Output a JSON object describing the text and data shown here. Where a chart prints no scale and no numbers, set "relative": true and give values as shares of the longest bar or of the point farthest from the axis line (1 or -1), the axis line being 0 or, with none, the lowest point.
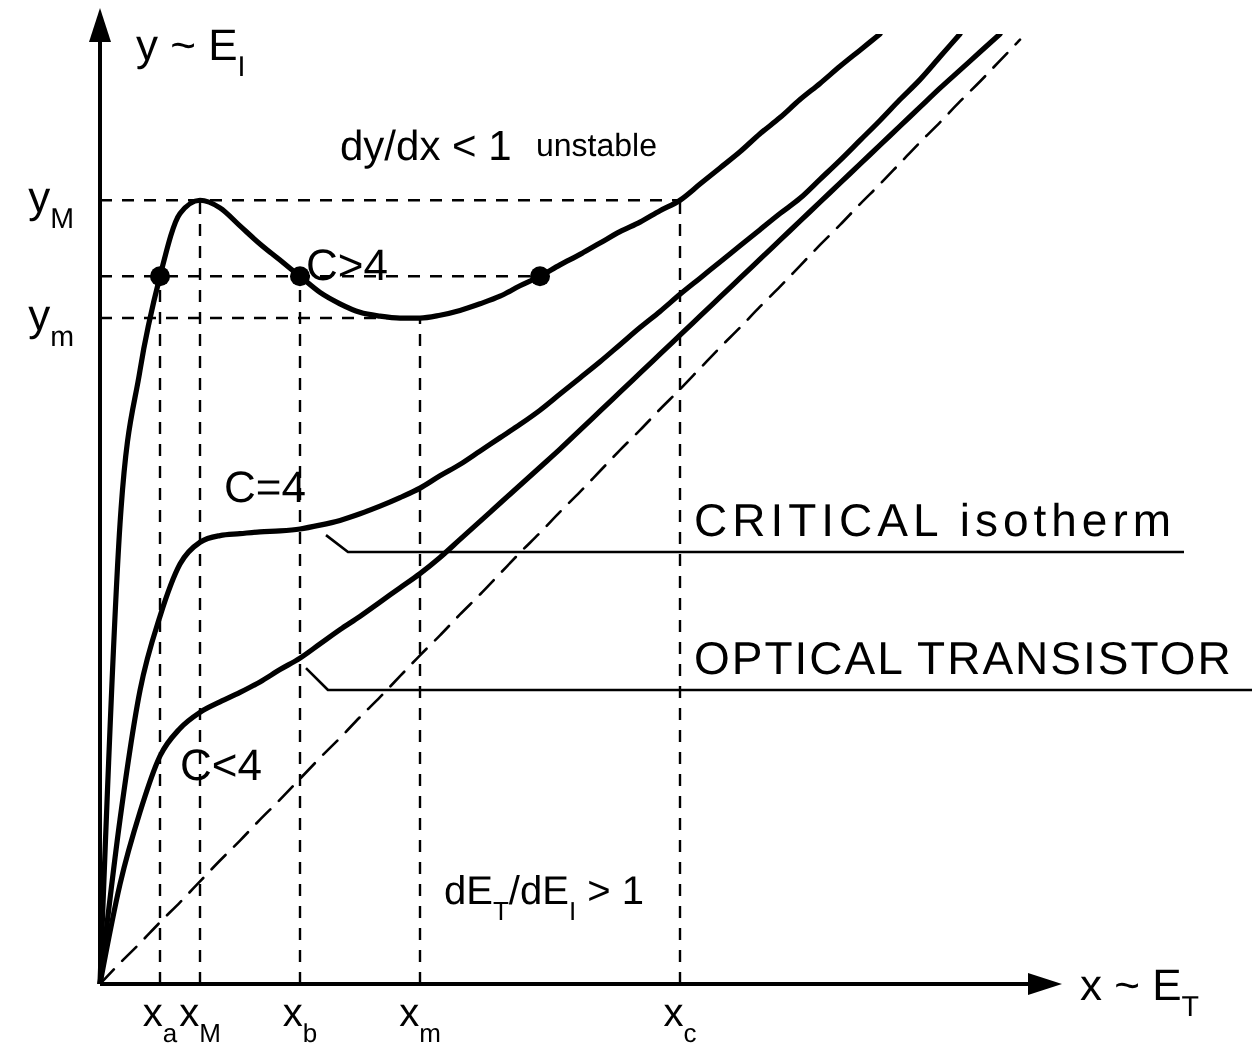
{
  "chart_data": {
    "type": "line",
    "relative": true,
    "xlabel": "x ~ E$_{T}$",
    "ylabel": "y ~ E$_{I}$",
    "categories": [
      null,
      null,
      null,
      "x$_{a}$",
      null,
      "x$_{M}$",
      null,
      null,
      null,
      null,
      "x$_{b}$",
      null,
      null,
      null,
      null,
      null,
      "x$_{m}$",
      null,
      null,
      null,
      null,
      null,
      null,
      null,
      null,
      null,
      null,
      null,
      null,
      "x$_{c}$",
      null,
      null,
      null,
      null,
      null,
      null,
      null,
      null,
      null,
      null,
      null,
      null,
      null,
      null,
      null,
      null,
      null,
      null
    ],
    "line_style": "solid",
    "series": [
      {
        "name": "C>4",
        "color": "#000000",
        "values": [
          0,
          0.484,
          0.646,
          0.745,
          0.811,
          0.825,
          0.817,
          0.798,
          0.779,
          0.762,
          0.745,
          0.728,
          0.716,
          0.707,
          0.703,
          0.701,
          0.701,
          0.704,
          0.709,
          0.716,
          0.724,
          0.735,
          0.745,
          0.757,
          0.768,
          0.78,
          0.792,
          0.802,
          0.814,
          0.825,
          0.842,
          0.859,
          0.876,
          0.895,
          0.912,
          0.931,
          0.948,
          0.966,
          0.983,
          1.0,
          null,
          null,
          null,
          null,
          null,
          null,
          null,
          null
        ]
      },
      {
        "name": "C=4",
        "color": "#000000",
        "values": [
          0,
          0.173,
          0.309,
          0.387,
          0.442,
          0.465,
          0.472,
          0.474,
          0.476,
          0.477,
          0.479,
          0.483,
          0.488,
          0.495,
          0.503,
          0.512,
          0.522,
          0.535,
          0.547,
          0.561,
          0.575,
          0.589,
          0.604,
          0.621,
          0.638,
          0.655,
          0.673,
          0.691,
          0.708,
          0.726,
          0.743,
          0.76,
          0.777,
          0.794,
          0.811,
          0.827,
          0.847,
          0.867,
          0.888,
          0.909,
          0.931,
          0.952,
          0.976,
          1.0,
          null,
          null,
          null,
          null
        ]
      },
      {
        "name": "C<4",
        "color": "#000000",
        "values": [
          0,
          0.105,
          0.181,
          0.24,
          0.269,
          0.286,
          0.297,
          0.307,
          0.318,
          0.331,
          0.343,
          0.358,
          0.373,
          0.387,
          0.402,
          0.417,
          0.432,
          0.449,
          0.468,
          0.487,
          0.506,
          0.525,
          0.544,
          0.563,
          0.583,
          0.603,
          0.623,
          0.643,
          0.663,
          0.683,
          0.703,
          0.723,
          0.743,
          0.763,
          0.783,
          0.803,
          0.823,
          0.843,
          0.863,
          0.883,
          0.903,
          0.923,
          0.943,
          0.962,
          0.981,
          1.0,
          null,
          null
        ]
      },
      {
        "color": "#000000",
        "line_style": "dashed",
        "values": [
          0,
          0.022,
          0.043,
          0.065,
          0.086,
          0.108,
          0.13,
          0.151,
          0.173,
          0.194,
          0.216,
          0.238,
          0.259,
          0.281,
          0.302,
          0.324,
          0.346,
          0.367,
          0.389,
          0.41,
          0.432,
          0.454,
          0.475,
          0.497,
          0.518,
          0.54,
          0.562,
          0.583,
          0.605,
          0.626,
          0.648,
          0.67,
          0.691,
          0.713,
          0.734,
          0.756,
          0.778,
          0.799,
          0.821,
          0.842,
          0.864,
          0.886,
          0.907,
          0.929,
          0.95,
          0.972,
          0.994,
          null
        ]
      },
      {
        "type": "scatter",
        "marker": "circle",
        "color": "#000000",
        "values": [
          null,
          null,
          null,
          0.745,
          null,
          null,
          null,
          null,
          null,
          null,
          0.745,
          null,
          null,
          null,
          null,
          null,
          null,
          null,
          null,
          null,
          null,
          null,
          0.745,
          null,
          null,
          null,
          null,
          null,
          null,
          null,
          null,
          null,
          null,
          null,
          null,
          null,
          null,
          null,
          null,
          null,
          null,
          null,
          null,
          null,
          null,
          null,
          null,
          null
        ]
      }
    ],
    "ref_lines": [
      {
        "axis": "y",
        "value": 0.825,
        "label": "y$_{M}$",
        "line_style": "dashed"
      },
      {
        "axis": "y",
        "value": 0.745,
        "line_style": "dashed"
      },
      {
        "axis": "y",
        "value": 0.701,
        "label": "y$_{m}$",
        "line_style": "dashed"
      },
      {
        "axis": "x",
        "value": "x$_{a}$",
        "line_style": "dashed"
      },
      {
        "axis": "x",
        "value": "x$_{M}$",
        "line_style": "dashed"
      },
      {
        "axis": "x",
        "value": "x$_{b}$",
        "line_style": "dashed"
      },
      {
        "axis": "x",
        "value": "x$_{m}$",
        "line_style": "dashed"
      },
      {
        "axis": "x",
        "value": "x$_{c}$",
        "line_style": "dashed"
      }
    ],
    "annotations": [
      "dy/dx < 1",
      "unstable",
      "dE$_{T}$/dE$_{I}$ > 1",
      "CRITICAL isotherm",
      "OPTICAL TRANSISTOR"
    ]
  }
}
